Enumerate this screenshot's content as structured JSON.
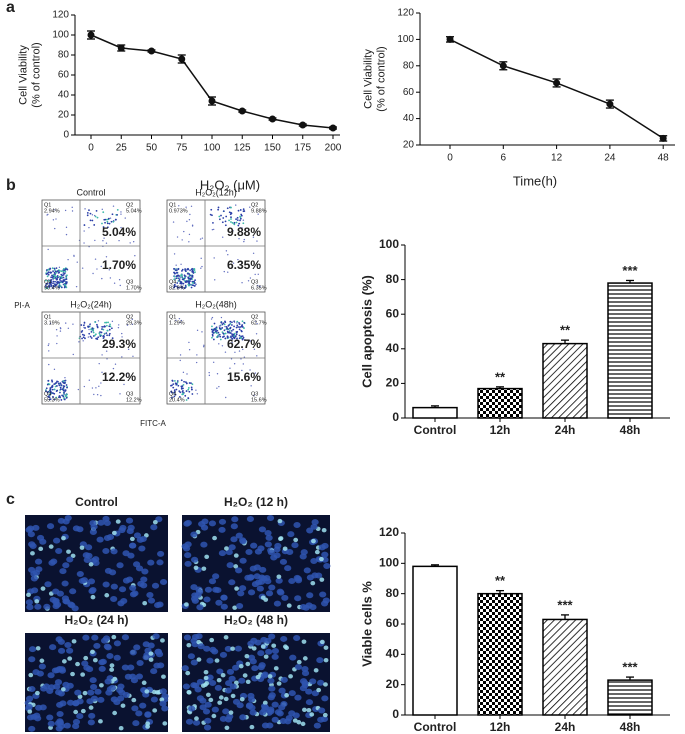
{
  "panel_labels": [
    "a",
    "b",
    "c"
  ],
  "chart_data": [
    {
      "type": "line",
      "categories": [
        "0",
        "25",
        "50",
        "75",
        "100",
        "125",
        "150",
        "175",
        "200"
      ],
      "values": [
        100,
        87,
        84,
        76,
        34,
        24,
        16,
        10,
        7
      ],
      "errors": [
        4,
        3,
        1,
        4,
        4,
        1,
        1,
        1,
        1
      ],
      "color": "#111111",
      "ylim": [
        0,
        120
      ],
      "yticks": [
        0,
        20,
        40,
        60,
        80,
        100,
        120
      ],
      "ylabel": [
        "Cell Viability",
        "(% of control)"
      ],
      "xlabel": "H₂O₂ (μM)"
    },
    {
      "type": "line",
      "categories": [
        "0",
        "6",
        "12",
        "24",
        "48"
      ],
      "values": [
        100,
        80,
        67,
        51,
        25
      ],
      "errors": [
        2,
        3,
        3,
        3,
        2
      ],
      "color": "#111111",
      "ylim": [
        20,
        120
      ],
      "yticks": [
        20,
        40,
        60,
        80,
        100,
        120
      ],
      "ylabel": [
        "Cell Viability",
        "(% of control)"
      ],
      "xlabel": "Time(h)"
    },
    {
      "type": "bar",
      "categories": [
        "Control",
        "12h",
        "24h",
        "48h"
      ],
      "values": [
        6,
        17,
        43,
        78
      ],
      "errors": [
        1,
        1,
        2,
        1.5
      ],
      "annotations": [
        null,
        "**",
        "**",
        "***"
      ],
      "fills": [
        "none",
        "checker",
        "diagonal",
        "horizontal"
      ],
      "color": "#000000",
      "ylim": [
        0,
        100
      ],
      "yticks": [
        0,
        20,
        40,
        60,
        80,
        100
      ],
      "ylabel": "Cell apoptosis (%)"
    },
    {
      "type": "bar",
      "categories": [
        "Control",
        "12h",
        "24h",
        "48h"
      ],
      "values": [
        98,
        80,
        63,
        23
      ],
      "errors": [
        1,
        2,
        3,
        2
      ],
      "annotations": [
        null,
        "**",
        "***",
        "***"
      ],
      "fills": [
        "none",
        "checker",
        "diagonal",
        "horizontal"
      ],
      "color": "#000000",
      "ylim": [
        0,
        120
      ],
      "yticks": [
        0,
        20,
        40,
        60,
        80,
        100,
        120
      ],
      "ylabel": "Viable cells %"
    }
  ],
  "flow": {
    "y_label": "PI-A",
    "x_label": "FITC-A",
    "plots": [
      {
        "title": "Control",
        "q1": "Q1",
        "q1_pct": "2.94%",
        "q2": "Q2",
        "q2_pct": "5.04%",
        "q3": "Q3",
        "q3_pct": "1.70%",
        "q4": "Q4",
        "q4_pct": "90.4%",
        "upper": "5.04%",
        "lower": "1.70%"
      },
      {
        "title": "H₂O₂(12h)",
        "q1": "Q1",
        "q1_pct": "0.973%",
        "q2": "Q2",
        "q2_pct": "9.88%",
        "q3": "Q3",
        "q3_pct": "6.35%",
        "q4": "Q4",
        "q4_pct": "82.8%",
        "upper": "9.88%",
        "lower": "6.35%"
      },
      {
        "title": "H₂O₂(24h)",
        "q1": "Q1",
        "q1_pct": "3.19%",
        "q2": "Q2",
        "q2_pct": "29.3%",
        "q3": "Q3",
        "q3_pct": "12.2%",
        "q4": "Q4",
        "q4_pct": "55.3%",
        "upper": "29.3%",
        "lower": "12.2%"
      },
      {
        "title": "H₂O₂(48h)",
        "q1": "Q1",
        "q1_pct": "1.29%",
        "q2": "Q2",
        "q2_pct": "62.7%",
        "q3": "Q3",
        "q3_pct": "15.6%",
        "q4": "Q4",
        "q4_pct": "20.4%",
        "upper": "62.7%",
        "lower": "15.6%"
      }
    ]
  },
  "micro": {
    "titles": [
      "Control",
      "H₂O₂ (12 h)",
      "H₂O₂ (24 h)",
      "H₂O₂ (48 h)"
    ]
  }
}
